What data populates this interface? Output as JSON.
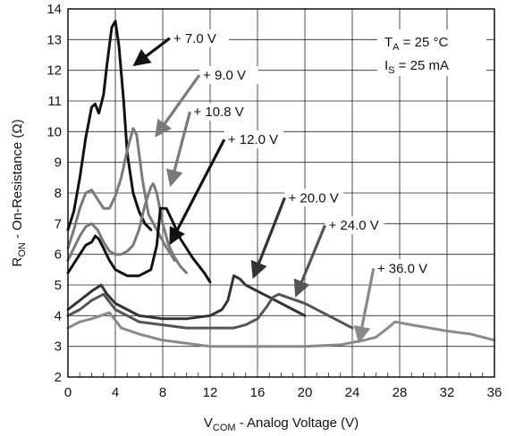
{
  "chart_data": {
    "type": "line",
    "xlabel": {
      "main": "V",
      "sub": "COM",
      "rest": " - Analog Voltage (V)"
    },
    "ylabel": {
      "main": "R",
      "sub": "ON",
      "rest": " - On-Resistance (Ω)"
    },
    "xlim": [
      0,
      36
    ],
    "ylim": [
      2,
      14
    ],
    "xticks": [
      0,
      4,
      8,
      12,
      16,
      20,
      24,
      28,
      32,
      36
    ],
    "yticks": [
      2,
      3,
      4,
      5,
      6,
      7,
      8,
      9,
      10,
      11,
      12,
      13,
      14
    ],
    "grid": true,
    "conditions": [
      {
        "main": "T",
        "sub": "A",
        "rest": " = 25 °C"
      },
      {
        "main": "I",
        "sub": "S",
        "rest": " = 25 mA"
      }
    ],
    "series": [
      {
        "name": "+ 7.0 V",
        "color": "#111111",
        "points": [
          [
            0,
            6.8
          ],
          [
            0.5,
            7.4
          ],
          [
            1,
            8.5
          ],
          [
            1.5,
            9.8
          ],
          [
            2,
            10.8
          ],
          [
            2.3,
            10.9
          ],
          [
            2.6,
            10.6
          ],
          [
            3,
            11.2
          ],
          [
            3.3,
            12.2
          ],
          [
            3.7,
            13.4
          ],
          [
            4,
            13.6
          ],
          [
            4.3,
            12.8
          ],
          [
            4.7,
            11.0
          ],
          [
            5,
            9.3
          ],
          [
            5.5,
            8.0
          ],
          [
            6,
            7.4
          ],
          [
            6.5,
            7.0
          ],
          [
            7,
            6.8
          ]
        ],
        "callout": {
          "label": [
            8.9,
            12.9
          ],
          "tip": [
            5.7,
            12.2
          ]
        }
      },
      {
        "name": "+ 9.0 V",
        "color": "#7a7a7a",
        "points": [
          [
            0,
            6.2
          ],
          [
            0.5,
            6.8
          ],
          [
            1,
            7.5
          ],
          [
            1.5,
            8.0
          ],
          [
            2,
            8.1
          ],
          [
            2.5,
            7.8
          ],
          [
            3,
            7.5
          ],
          [
            3.5,
            7.5
          ],
          [
            4,
            7.9
          ],
          [
            4.5,
            8.5
          ],
          [
            5,
            9.4
          ],
          [
            5.5,
            10.1
          ],
          [
            5.8,
            9.9
          ],
          [
            6.3,
            8.4
          ],
          [
            6.8,
            7.3
          ],
          [
            7.5,
            6.8
          ],
          [
            8.2,
            6.3
          ],
          [
            9,
            5.8
          ]
        ],
        "callout": {
          "label": [
            11.4,
            11.7
          ],
          "tip": [
            7.5,
            9.9
          ]
        }
      },
      {
        "name": "+ 10.8 V",
        "color": "#7a7a7a",
        "points": [
          [
            0,
            5.8
          ],
          [
            0.5,
            6.2
          ],
          [
            1,
            6.6
          ],
          [
            1.5,
            6.9
          ],
          [
            2,
            7.0
          ],
          [
            2.5,
            6.8
          ],
          [
            3,
            6.4
          ],
          [
            3.5,
            6.1
          ],
          [
            4,
            6.0
          ],
          [
            4.5,
            6.0
          ],
          [
            5,
            6.1
          ],
          [
            5.5,
            6.3
          ],
          [
            6,
            6.8
          ],
          [
            6.5,
            7.6
          ],
          [
            7,
            8.2
          ],
          [
            7.2,
            8.3
          ],
          [
            7.5,
            8.0
          ],
          [
            8,
            7.0
          ],
          [
            8.5,
            6.3
          ],
          [
            9,
            5.9
          ],
          [
            9.5,
            5.6
          ],
          [
            10,
            5.4
          ]
        ],
        "callout": {
          "label": [
            10.6,
            10.5
          ],
          "tip": [
            8.7,
            8.3
          ]
        }
      },
      {
        "name": "+ 12.0 V",
        "color": "#111111",
        "points": [
          [
            0,
            5.4
          ],
          [
            0.5,
            5.7
          ],
          [
            1,
            6.0
          ],
          [
            1.5,
            6.3
          ],
          [
            2,
            6.4
          ],
          [
            2.3,
            6.6
          ],
          [
            2.6,
            6.5
          ],
          [
            3,
            6.2
          ],
          [
            3.5,
            5.8
          ],
          [
            4,
            5.5
          ],
          [
            5,
            5.3
          ],
          [
            6,
            5.3
          ],
          [
            7,
            5.5
          ],
          [
            7.5,
            6.3
          ],
          [
            7.8,
            7.5
          ],
          [
            8.3,
            7.5
          ],
          [
            8.8,
            7.1
          ],
          [
            9.5,
            6.5
          ],
          [
            10.5,
            5.9
          ],
          [
            11.5,
            5.4
          ],
          [
            12,
            5.1
          ]
        ],
        "callout": {
          "label": [
            13.5,
            9.6
          ],
          "tip": [
            8.7,
            6.4
          ]
        }
      },
      {
        "name": "+ 20.0 V",
        "color": "#333333",
        "points": [
          [
            0,
            4.2
          ],
          [
            1,
            4.5
          ],
          [
            2,
            4.8
          ],
          [
            2.8,
            5.0
          ],
          [
            3.3,
            4.7
          ],
          [
            4,
            4.4
          ],
          [
            5,
            4.2
          ],
          [
            6,
            4.0
          ],
          [
            8,
            3.9
          ],
          [
            10,
            3.9
          ],
          [
            12,
            4.0
          ],
          [
            13,
            4.2
          ],
          [
            13.5,
            4.5
          ],
          [
            14,
            5.3
          ],
          [
            14.5,
            5.2
          ],
          [
            15,
            5.0
          ],
          [
            16,
            4.8
          ],
          [
            17,
            4.6
          ],
          [
            18,
            4.4
          ],
          [
            19,
            4.2
          ],
          [
            20,
            4.0
          ]
        ],
        "callout": {
          "label": [
            18.6,
            7.7
          ],
          "tip": [
            15.7,
            5.3
          ]
        }
      },
      {
        "name": "+ 24.0 V",
        "color": "#555555",
        "points": [
          [
            0,
            4.0
          ],
          [
            1,
            4.2
          ],
          [
            2,
            4.5
          ],
          [
            3,
            4.7
          ],
          [
            4,
            4.2
          ],
          [
            5,
            4.0
          ],
          [
            6,
            3.8
          ],
          [
            8,
            3.7
          ],
          [
            10,
            3.6
          ],
          [
            12,
            3.6
          ],
          [
            14,
            3.6
          ],
          [
            15,
            3.7
          ],
          [
            16,
            3.9
          ],
          [
            16.8,
            4.3
          ],
          [
            17.3,
            4.6
          ],
          [
            17.8,
            4.7
          ],
          [
            18.5,
            4.6
          ],
          [
            20,
            4.4
          ],
          [
            22,
            4.0
          ],
          [
            24,
            3.6
          ]
        ],
        "callout": {
          "label": [
            22.0,
            6.8
          ],
          "tip": [
            19.3,
            4.7
          ]
        }
      },
      {
        "name": "+ 36.0 V",
        "color": "#8a8a8a",
        "points": [
          [
            0,
            3.6
          ],
          [
            1,
            3.8
          ],
          [
            2,
            3.9
          ],
          [
            3.5,
            4.1
          ],
          [
            4.5,
            3.6
          ],
          [
            6,
            3.4
          ],
          [
            8,
            3.2
          ],
          [
            10,
            3.1
          ],
          [
            12,
            3.0
          ],
          [
            16,
            3.0
          ],
          [
            20,
            3.0
          ],
          [
            23,
            3.05
          ],
          [
            25,
            3.2
          ],
          [
            26,
            3.3
          ],
          [
            27,
            3.6
          ],
          [
            27.6,
            3.8
          ],
          [
            29,
            3.7
          ],
          [
            32,
            3.5
          ],
          [
            34,
            3.4
          ],
          [
            36,
            3.2
          ]
        ],
        "callout": {
          "label": [
            26.1,
            5.4
          ],
          "tip": [
            24.6,
            3.2
          ]
        }
      }
    ]
  }
}
